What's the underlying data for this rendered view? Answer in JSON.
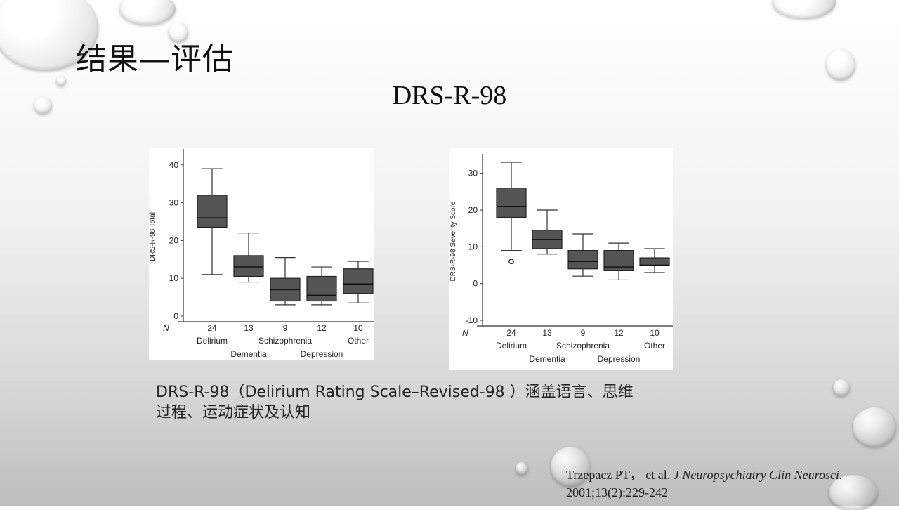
{
  "slide": {
    "heading": "结果—评估",
    "subtitle": "DRS-R-98",
    "caption_line1": "DRS-R-98（Delirium Rating Scale–Revised-98 ）涵盖语言、思维",
    "caption_line2": "过程、运动症状及认知",
    "citation_authors": "Trzepacz PT，  et al. ",
    "citation_journal": "J Neuropsychiatry Clin Neurosci.",
    "citation_detail": "2001;13(2):229-242"
  },
  "chart_data": [
    {
      "type": "boxplot",
      "ylabel": "DRS-R-98 Total",
      "ylim": [
        0,
        42
      ],
      "yticks": [
        0,
        10,
        20,
        30,
        40
      ],
      "n_label": "N =",
      "categories": [
        "Delirium",
        "Dementia",
        "Schizophrenia",
        "Depression",
        "Other"
      ],
      "n": [
        "24",
        "13",
        "9",
        "12",
        "10"
      ],
      "boxes": [
        {
          "min": 11,
          "q1": 23.5,
          "median": 26,
          "q3": 32,
          "max": 39
        },
        {
          "min": 9,
          "q1": 10.5,
          "median": 13,
          "q3": 16,
          "max": 22
        },
        {
          "min": 3,
          "q1": 4,
          "median": 7,
          "q3": 10,
          "max": 15.5
        },
        {
          "min": 3,
          "q1": 4,
          "median": 5.5,
          "q3": 10.5,
          "max": 13
        },
        {
          "min": 3.5,
          "q1": 6,
          "median": 8.5,
          "q3": 12.5,
          "max": 14.5
        }
      ]
    },
    {
      "type": "boxplot",
      "ylabel": "DRS-R-98 Severity Score",
      "ylim": [
        -10,
        33
      ],
      "yticks": [
        -10,
        0,
        10,
        20,
        30
      ],
      "n_label": "N =",
      "categories": [
        "Delirium",
        "Dementia",
        "Schizophrenia",
        "Depression",
        "Other"
      ],
      "n": [
        "24",
        "13",
        "9",
        "12",
        "10"
      ],
      "boxes": [
        {
          "min": 9,
          "q1": 18,
          "median": 21,
          "q3": 26,
          "max": 33,
          "outliers": [
            6
          ]
        },
        {
          "min": 8,
          "q1": 9.5,
          "median": 12,
          "q3": 14.5,
          "max": 20
        },
        {
          "min": 2,
          "q1": 4,
          "median": 6,
          "q3": 9,
          "max": 13.5
        },
        {
          "min": 1,
          "q1": 3.5,
          "median": 4.5,
          "q3": 9,
          "max": 11
        },
        {
          "min": 3,
          "q1": 5,
          "median": 5,
          "q3": 7,
          "max": 9.5
        }
      ]
    }
  ]
}
